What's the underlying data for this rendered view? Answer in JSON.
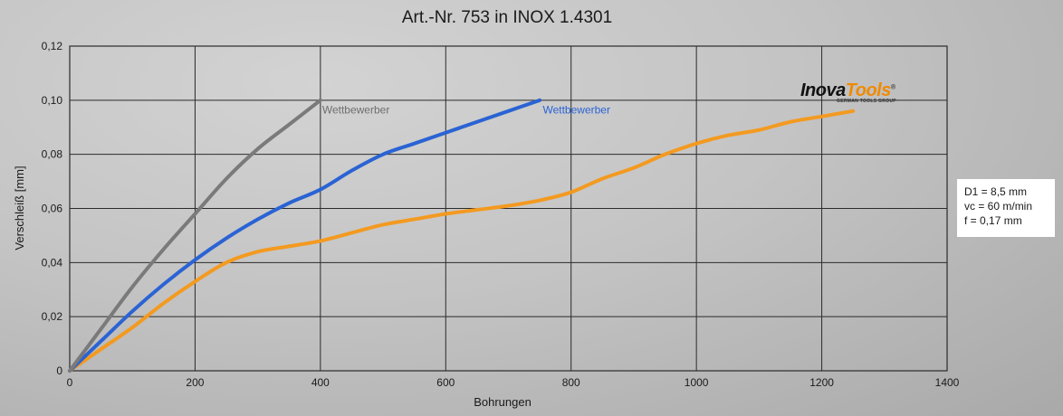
{
  "chart_data": {
    "type": "line",
    "title": "Art.-Nr. 753 in INOX 1.4301",
    "xlabel": "Bohrungen",
    "ylabel": "Verschleiß [mm]",
    "xlim": [
      0,
      1400
    ],
    "ylim": [
      0,
      0.12
    ],
    "xticks": [
      0,
      200,
      400,
      600,
      800,
      1000,
      1200,
      1400
    ],
    "xtick_labels": [
      "0",
      "200",
      "400",
      "600",
      "800",
      "1000",
      "1200",
      "1400"
    ],
    "yticks": [
      0,
      0.02,
      0.04,
      0.06,
      0.08,
      0.1,
      0.12
    ],
    "ytick_labels": [
      "0",
      "0,02",
      "0,04",
      "0,06",
      "0,08",
      "0,10",
      "0,12"
    ],
    "grid": true,
    "series": [
      {
        "name": "Wettbewerber",
        "color": "#7a7a7a",
        "label_color": "#6e6e6e",
        "x": [
          0,
          50,
          100,
          150,
          200,
          250,
          300,
          350,
          400
        ],
        "y": [
          0,
          0.0155,
          0.031,
          0.045,
          0.058,
          0.071,
          0.082,
          0.091,
          0.1
        ]
      },
      {
        "name": "Wettbewerber",
        "color": "#2a63d4",
        "label_color": "#2a63d4",
        "x": [
          0,
          50,
          100,
          150,
          200,
          250,
          300,
          350,
          400,
          450,
          500,
          550,
          600,
          650,
          700,
          750
        ],
        "y": [
          0,
          0.011,
          0.022,
          0.032,
          0.041,
          0.049,
          0.056,
          0.062,
          0.067,
          0.074,
          0.08,
          0.084,
          0.088,
          0.092,
          0.096,
          0.1
        ]
      },
      {
        "name": "",
        "color": "#f39a20",
        "label_color": "",
        "x": [
          0,
          50,
          100,
          150,
          200,
          250,
          300,
          350,
          400,
          450,
          500,
          550,
          600,
          650,
          700,
          750,
          800,
          850,
          900,
          950,
          1000,
          1050,
          1100,
          1150,
          1200,
          1250
        ],
        "y": [
          0,
          0.008,
          0.016,
          0.025,
          0.033,
          0.04,
          0.044,
          0.046,
          0.048,
          0.051,
          0.054,
          0.056,
          0.058,
          0.0595,
          0.061,
          0.063,
          0.066,
          0.071,
          0.075,
          0.08,
          0.084,
          0.087,
          0.089,
          0.092,
          0.094,
          0.096
        ]
      }
    ],
    "annotations": [
      {
        "text": "Wettbewerber",
        "x": 400,
        "y": 0.0985,
        "color": "#6e6e6e"
      },
      {
        "text": "Wettbewerber",
        "x": 752,
        "y": 0.0985,
        "color": "#2a63d4"
      }
    ]
  },
  "infobox": {
    "line1": "D1 = 8,5 mm",
    "line2": "vc = 60 m/min",
    "line3": "f = 0,17 mm"
  },
  "logo": {
    "part1": "Inova",
    "part2": "Tools",
    "registered": "®",
    "tagline": "GERMAN TOOLS GROUP"
  }
}
